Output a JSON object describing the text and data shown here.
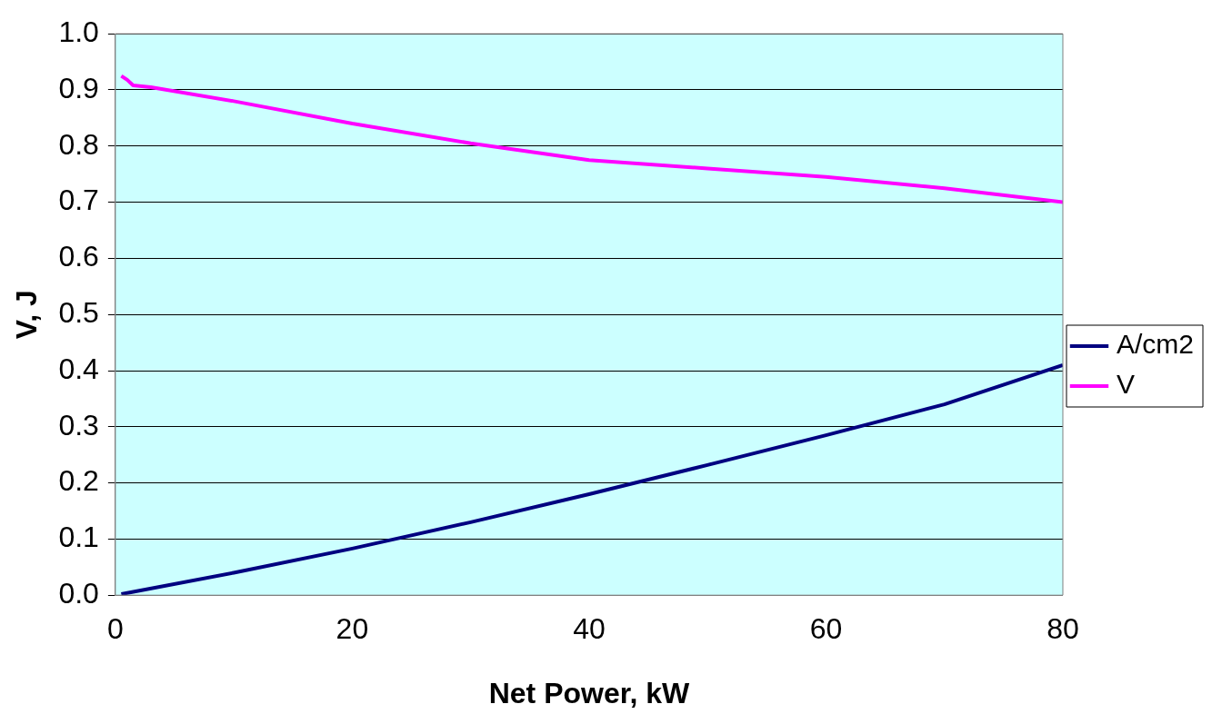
{
  "chart_data": {
    "type": "line",
    "xlabel": "Net Power, kW",
    "ylabel": "V, J",
    "xlim": [
      0,
      80
    ],
    "xticks": [
      0,
      20,
      40,
      60,
      80
    ],
    "ylim": [
      0,
      1
    ],
    "yticks": [
      {
        "value": 0,
        "label": "0.0"
      },
      0.1,
      0.2,
      0.3,
      0.4,
      0.5,
      0.6,
      0.7,
      0.8,
      0.9,
      {
        "value": 1,
        "label": "1.0"
      }
    ],
    "grid": "y",
    "legend": "right",
    "marker": "none",
    "line_style": "solid",
    "series": [
      {
        "name": "A/cm2",
        "color": "#000080",
        "x": [
          0.5,
          10,
          20,
          30,
          40,
          50,
          60,
          70,
          80
        ],
        "values": [
          0.002,
          0.04,
          0.083,
          0.13,
          0.18,
          0.232,
          0.285,
          0.34,
          0.41
        ]
      },
      {
        "name": "V",
        "color": "#ff00ff",
        "x": [
          0.5,
          1,
          1.5,
          3,
          10,
          20,
          30,
          40,
          50,
          60,
          70,
          80
        ],
        "values": [
          0.925,
          0.918,
          0.908,
          0.905,
          0.88,
          0.84,
          0.805,
          0.775,
          0.76,
          0.745,
          0.725,
          0.7
        ]
      }
    ]
  }
}
